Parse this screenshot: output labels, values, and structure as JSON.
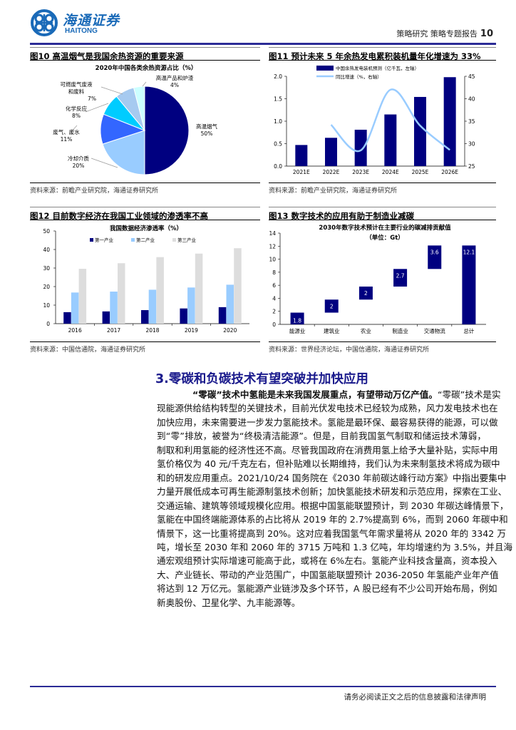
{
  "header": {
    "logo_cn": "海通证券",
    "logo_en": "HAITONG",
    "section": "策略研究 策略专题报告",
    "page": "10",
    "accent": "#2b2b96"
  },
  "figures": [
    {
      "title": "图10 高温烟气是我国余热资源的重要来源",
      "source": "资料来源：前瞻产业研究院，海通证券研究所"
    },
    {
      "title": "图11 预计未来 5 年余热发电累积装机量年化增速为 33%",
      "source": "资料来源：前瞻产业研究院，海通证券研究所"
    },
    {
      "title": "图12 目前数字经济在我国工业领域的渗透率不高",
      "source": "资料来源：中国信通院，海通证券研究所"
    },
    {
      "title": "图13 数字技术的应用有助于制造业减碳",
      "source": "资料来源：世界经济论坛，中国信通院，海通证券研究所"
    }
  ],
  "chart_data": [
    {
      "type": "pie",
      "title": "2020年中国各类余热资源占比（%）",
      "slices": [
        {
          "label": "高温烟气",
          "value": 50,
          "text": "50%",
          "color": "#000080"
        },
        {
          "label": "冷却介质",
          "value": 20,
          "text": "20%",
          "color": "#99ccff"
        },
        {
          "label": "废气、废水",
          "value": 11,
          "text": "11%",
          "color": "#3366ff"
        },
        {
          "label": "化学反应",
          "value": 8,
          "text": "8%",
          "color": "#00ccff"
        },
        {
          "label": "可燃废气废液和废料",
          "label_lines": [
            "可燃废气废液",
            "和废料"
          ],
          "value": 7,
          "text": "7%",
          "color": "#a6caf0"
        },
        {
          "label": "高温产品和炉渣",
          "value": 4,
          "text": "4%",
          "color": "#ccffff"
        }
      ]
    },
    {
      "type": "bar+line",
      "categories": [
        "2021E",
        "2022E",
        "2023E",
        "2024E",
        "2025E",
        "2026E"
      ],
      "series": [
        {
          "name": "中国余热发电装机预测（亿千瓦，左轴）",
          "type": "bar",
          "axis": "left",
          "values": [
            0.47,
            0.63,
            0.81,
            1.15,
            1.54,
            1.98
          ],
          "color": "#000080"
        },
        {
          "name": "同比增速（%，右轴）",
          "type": "line",
          "axis": "right",
          "values": [
            null,
            34.2,
            28.5,
            42.0,
            34.0,
            28.6
          ],
          "color": "#99ccff"
        }
      ],
      "ylim_left": [
        0,
        2.0
      ],
      "yticks_left": [
        "0.0",
        "0.5",
        "1.0",
        "1.5",
        "2.0"
      ],
      "ylim_right": [
        25,
        45
      ],
      "yticks_right": [
        "25",
        "30",
        "35",
        "40",
        "45"
      ],
      "legend": "top"
    },
    {
      "type": "bar",
      "title": "我国数据经济渗透率（%）",
      "categories": [
        "2016",
        "2017",
        "2018",
        "2019",
        "2020"
      ],
      "series": [
        {
          "name": "第一产业",
          "values": [
            6.2,
            6.6,
            7.3,
            8.2,
            8.9
          ],
          "color": "#000080"
        },
        {
          "name": "第二产业",
          "values": [
            16.8,
            17.3,
            18.3,
            19.5,
            21.0
          ],
          "color": "#99ccff"
        },
        {
          "name": "第三产业",
          "values": [
            29.6,
            32.6,
            35.9,
            37.8,
            40.7
          ],
          "color": "#dddddd"
        }
      ],
      "ylim": [
        0,
        50
      ],
      "yticks": [
        "0",
        "10",
        "20",
        "30",
        "40",
        "50"
      ],
      "legend": "top"
    },
    {
      "type": "waterfall",
      "title": "2030年数字技术预计在主要行业的碳减排贡献值",
      "subtitle": "（单位：Gt）",
      "categories": [
        "能源业",
        "建筑业",
        "农业",
        "制造业",
        "交通物流",
        "总计"
      ],
      "values": [
        1.8,
        2,
        2,
        2.7,
        3.6,
        12.1
      ],
      "labels": [
        "1.8",
        "2",
        "2",
        "2.7",
        "3.6",
        "12.1"
      ],
      "bases": [
        0,
        1.8,
        3.8,
        5.8,
        8.5,
        0
      ],
      "color": "#000080",
      "ylim": [
        0,
        14
      ],
      "yticks": [
        "0",
        "2",
        "4",
        "6",
        "8",
        "10",
        "12",
        "14"
      ]
    }
  ],
  "section": {
    "heading": "3.零碳和负碳技术有望突破并加快应用",
    "lead_bold": "“零碳”技术中氢能是未来我国发展重点，有望带动万亿产值。",
    "lines": [
      "“零碳”技术是实",
      "现能源供给结构转型的关键技术，目前光伏发电技术已经较为成熟，风力发电技术也在",
      "加快应用，未来需要进一步发力氢能技术。氢能是最环保、最容易获得的能源，可以做",
      "到“零”排放，被誉为“终极清洁能源”。但是，目前我国氢气制取和储运技术薄弱，",
      "制取和利用氢能的经济性还不高。尽管我国政府在消费用氢上给予大量补贴，实际中用",
      "氢价格仅为 40 元/千克左右，但补贴难以长期维持，我们认为未来制氢技术将成为碳中",
      "和的研发应用重点。2021/10/24 国务院在《2030 年前碳达峰行动方案》中指出要集中",
      "力量开展低成本可再生能源制氢技术创新；加快氢能技术研发和示范应用，探索在工业、",
      "交通运输、建筑等领域规模化应用。根据中国氢能联盟预计，到 2030 年碳达峰情景下，",
      "氢能在中国终端能源体系的占比将从 2019 年的 2.7%提高到 6%，而到 2060 年碳中和",
      "情景下，这一比重将提高到 20%。这对应着我国氢气年需求量将从 2020 年的 3342 万",
      "吨，增长至 2030 年和 2060 年的 3715 万吨和 1.3 亿吨，年均增速约为 3.5%，并且海",
      "通宏观组预计实际增速可能高于此，或将在 6%左右。氢能产业科技含量高，资本投入",
      "大、产业链长、带动的产业范围广，中国氢能联盟预计 2036-2050 年氢能产业年产值",
      "将达到 12 万亿元。氢能源产业链涉及多个环节，A 股已经有不少公司开始布局，例如",
      "新奥股份、卫星化学、九丰能源等。"
    ]
  },
  "footer": {
    "text": "请务必阅读正文之后的信息披露和法律声明"
  }
}
